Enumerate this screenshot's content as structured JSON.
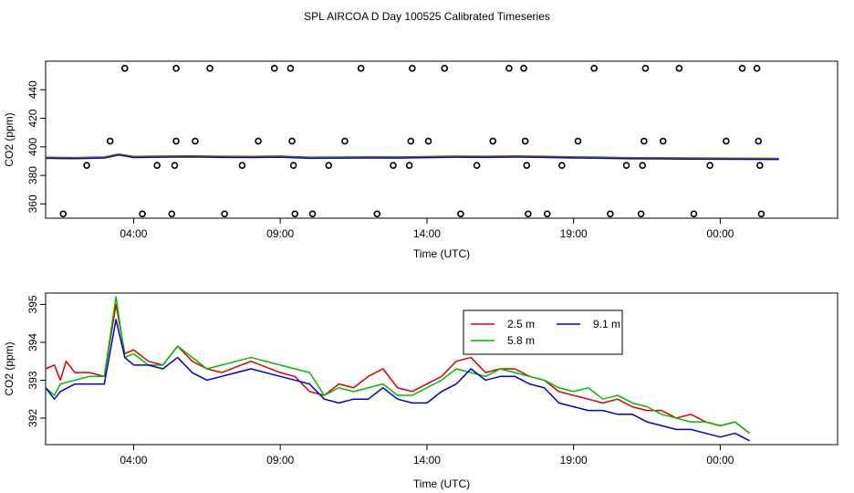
{
  "title": "SPL AIRCOA D  Day 100525  Calibrated Timeseries",
  "colors": {
    "s25": "#dd0000",
    "s58": "#00bb00",
    "s91": "#0000cc",
    "axis": "#000000"
  },
  "chart_data": [
    {
      "type": "scatter",
      "name": "top-panel",
      "xlabel": "Time (UTC)",
      "ylabel": "CO2 (ppm)",
      "xlim": [
        0,
        27
      ],
      "ylim": [
        350,
        460
      ],
      "x_ticks": [
        3,
        8,
        13,
        18,
        23
      ],
      "x_tick_labels": [
        "04:00",
        "09:00",
        "14:00",
        "19:00",
        "00:00"
      ],
      "y_ticks": [
        360,
        380,
        400,
        420,
        440
      ],
      "y_tick_labels": [
        "360",
        "380",
        "400",
        "420",
        "440"
      ],
      "points": [
        {
          "x": 0.6,
          "y": 353
        },
        {
          "x": 1.4,
          "y": 387
        },
        {
          "x": 2.2,
          "y": 404
        },
        {
          "x": 2.7,
          "y": 455
        },
        {
          "x": 3.3,
          "y": 353
        },
        {
          "x": 3.8,
          "y": 387
        },
        {
          "x": 4.3,
          "y": 353
        },
        {
          "x": 4.4,
          "y": 387
        },
        {
          "x": 4.45,
          "y": 404
        },
        {
          "x": 4.45,
          "y": 455
        },
        {
          "x": 5.1,
          "y": 404
        },
        {
          "x": 5.6,
          "y": 455
        },
        {
          "x": 6.1,
          "y": 353
        },
        {
          "x": 6.7,
          "y": 387
        },
        {
          "x": 7.25,
          "y": 404
        },
        {
          "x": 7.8,
          "y": 455
        },
        {
          "x": 8.35,
          "y": 455
        },
        {
          "x": 8.4,
          "y": 404
        },
        {
          "x": 8.45,
          "y": 387
        },
        {
          "x": 8.5,
          "y": 353
        },
        {
          "x": 9.1,
          "y": 353
        },
        {
          "x": 9.65,
          "y": 387
        },
        {
          "x": 10.2,
          "y": 404
        },
        {
          "x": 10.75,
          "y": 455
        },
        {
          "x": 11.3,
          "y": 353
        },
        {
          "x": 11.85,
          "y": 387
        },
        {
          "x": 12.4,
          "y": 387
        },
        {
          "x": 12.45,
          "y": 404
        },
        {
          "x": 12.5,
          "y": 455
        },
        {
          "x": 13.05,
          "y": 404
        },
        {
          "x": 13.6,
          "y": 455
        },
        {
          "x": 14.15,
          "y": 353
        },
        {
          "x": 14.7,
          "y": 387
        },
        {
          "x": 15.25,
          "y": 404
        },
        {
          "x": 15.8,
          "y": 455
        },
        {
          "x": 16.3,
          "y": 455
        },
        {
          "x": 16.35,
          "y": 404
        },
        {
          "x": 16.4,
          "y": 387
        },
        {
          "x": 16.45,
          "y": 353
        },
        {
          "x": 17.1,
          "y": 353
        },
        {
          "x": 17.6,
          "y": 387
        },
        {
          "x": 18.15,
          "y": 404
        },
        {
          "x": 18.7,
          "y": 455
        },
        {
          "x": 19.25,
          "y": 353
        },
        {
          "x": 19.8,
          "y": 387
        },
        {
          "x": 20.3,
          "y": 353
        },
        {
          "x": 20.35,
          "y": 387
        },
        {
          "x": 20.4,
          "y": 404
        },
        {
          "x": 20.45,
          "y": 455
        },
        {
          "x": 21.05,
          "y": 404
        },
        {
          "x": 21.6,
          "y": 455
        },
        {
          "x": 22.1,
          "y": 353
        },
        {
          "x": 22.65,
          "y": 387
        },
        {
          "x": 23.2,
          "y": 404
        },
        {
          "x": 23.75,
          "y": 455
        },
        {
          "x": 24.25,
          "y": 455
        },
        {
          "x": 24.3,
          "y": 404
        },
        {
          "x": 24.35,
          "y": 387
        },
        {
          "x": 24.4,
          "y": 353
        }
      ],
      "line": [
        [
          0,
          392.3
        ],
        [
          1,
          392.1
        ],
        [
          2,
          392.5
        ],
        [
          2.5,
          394.6
        ],
        [
          3,
          392.9
        ],
        [
          4,
          393.1
        ],
        [
          5,
          393.3
        ],
        [
          6,
          393.0
        ],
        [
          7,
          392.9
        ],
        [
          8,
          393.1
        ],
        [
          9,
          392.3
        ],
        [
          10,
          392.4
        ],
        [
          11,
          392.6
        ],
        [
          12,
          392.5
        ],
        [
          13,
          392.8
        ],
        [
          14,
          393.1
        ],
        [
          15,
          393.0
        ],
        [
          16,
          393.2
        ],
        [
          17,
          393.0
        ],
        [
          18,
          392.6
        ],
        [
          19,
          392.3
        ],
        [
          20,
          392.0
        ],
        [
          21,
          391.9
        ],
        [
          22,
          391.8
        ],
        [
          23,
          391.7
        ],
        [
          24,
          391.6
        ],
        [
          25,
          391.5
        ]
      ]
    },
    {
      "type": "line",
      "name": "bottom-panel",
      "xlabel": "Time (UTC)",
      "ylabel": "CO2 (ppm)",
      "xlim": [
        0,
        27
      ],
      "ylim": [
        391.3,
        395.3
      ],
      "x_ticks": [
        3,
        8,
        13,
        18,
        23
      ],
      "x_tick_labels": [
        "04:00",
        "09:00",
        "14:00",
        "19:00",
        "00:00"
      ],
      "y_ticks": [
        392,
        393,
        394,
        395
      ],
      "y_tick_labels": [
        "392",
        "393",
        "394",
        "395"
      ],
      "legend": {
        "placement": "top-center",
        "entries": [
          "2.5 m",
          "5.8 m",
          "9.1 m"
        ]
      },
      "series": [
        {
          "name": "2.5 m",
          "x": [
            0,
            0.3,
            0.5,
            0.7,
            1.0,
            1.5,
            2.0,
            2.4,
            2.7,
            3.0,
            3.5,
            4.0,
            4.5,
            5.0,
            5.5,
            6.0,
            7.0,
            8.0,
            8.5,
            9.0,
            9.5,
            10.0,
            10.5,
            11.0,
            11.5,
            12.0,
            12.5,
            13.0,
            13.5,
            14.0,
            14.5,
            15.0,
            15.5,
            16.0,
            16.5,
            17.0,
            17.5,
            18.0,
            18.5,
            19.0,
            19.5,
            20.0,
            20.5,
            21.0,
            21.5,
            22.0,
            22.5,
            23.0,
            23.5,
            24.0
          ],
          "values": [
            393.3,
            393.4,
            393.0,
            393.5,
            393.2,
            393.2,
            393.1,
            395.0,
            393.7,
            393.8,
            393.5,
            393.4,
            393.9,
            393.5,
            393.3,
            393.2,
            393.5,
            393.2,
            393.1,
            392.7,
            392.6,
            392.9,
            392.8,
            393.1,
            393.3,
            392.8,
            392.7,
            392.9,
            393.1,
            393.5,
            393.6,
            393.2,
            393.3,
            393.3,
            393.1,
            393.0,
            392.7,
            392.6,
            392.5,
            392.4,
            392.5,
            392.3,
            392.2,
            392.2,
            392.0,
            392.1,
            391.9,
            391.8,
            391.9,
            391.6
          ]
        },
        {
          "name": "5.8 m",
          "x": [
            0,
            0.3,
            0.5,
            1.0,
            1.5,
            2.0,
            2.4,
            2.7,
            3.0,
            3.5,
            4.0,
            4.5,
            5.0,
            5.5,
            6.0,
            7.0,
            8.0,
            8.5,
            9.0,
            9.5,
            10.0,
            10.5,
            11.0,
            11.5,
            12.0,
            12.5,
            13.0,
            13.5,
            14.0,
            14.5,
            15.0,
            15.5,
            16.0,
            16.5,
            17.0,
            17.5,
            18.0,
            18.5,
            19.0,
            19.5,
            20.0,
            20.5,
            21.0,
            21.5,
            22.0,
            22.5,
            23.0,
            23.5,
            24.0
          ],
          "values": [
            392.8,
            392.6,
            392.9,
            393.0,
            393.1,
            393.1,
            395.2,
            393.6,
            393.7,
            393.4,
            393.4,
            393.9,
            393.6,
            393.3,
            393.4,
            393.6,
            393.4,
            393.3,
            393.2,
            392.6,
            392.8,
            392.7,
            392.8,
            392.9,
            392.6,
            392.6,
            392.8,
            393.0,
            393.3,
            393.2,
            393.1,
            393.3,
            393.2,
            393.1,
            393.0,
            392.8,
            392.7,
            392.8,
            392.5,
            392.6,
            392.4,
            392.3,
            392.1,
            392.0,
            391.9,
            391.9,
            391.8,
            391.9,
            391.6
          ]
        },
        {
          "name": "9.1 m",
          "x": [
            0,
            0.3,
            0.5,
            1.0,
            1.5,
            2.0,
            2.4,
            2.7,
            3.0,
            3.5,
            4.0,
            4.5,
            5.0,
            5.5,
            6.0,
            7.0,
            8.0,
            8.5,
            9.0,
            9.5,
            10.0,
            10.5,
            11.0,
            11.5,
            12.0,
            12.5,
            13.0,
            13.5,
            14.0,
            14.5,
            15.0,
            15.5,
            16.0,
            16.5,
            17.0,
            17.5,
            18.0,
            18.5,
            19.0,
            19.5,
            20.0,
            20.5,
            21.0,
            21.5,
            22.0,
            22.5,
            23.0,
            23.5,
            24.0
          ],
          "values": [
            392.8,
            392.5,
            392.7,
            392.9,
            392.9,
            392.9,
            394.6,
            393.6,
            393.4,
            393.4,
            393.3,
            393.6,
            393.2,
            393.0,
            393.1,
            393.3,
            393.1,
            393.0,
            392.9,
            392.5,
            392.4,
            392.5,
            392.5,
            392.8,
            392.5,
            392.4,
            392.4,
            392.7,
            392.9,
            393.3,
            393.0,
            393.1,
            393.1,
            392.9,
            392.8,
            392.4,
            392.3,
            392.2,
            392.2,
            392.1,
            392.1,
            391.9,
            391.8,
            391.7,
            391.7,
            391.6,
            391.5,
            391.6,
            391.4
          ]
        }
      ]
    }
  ]
}
